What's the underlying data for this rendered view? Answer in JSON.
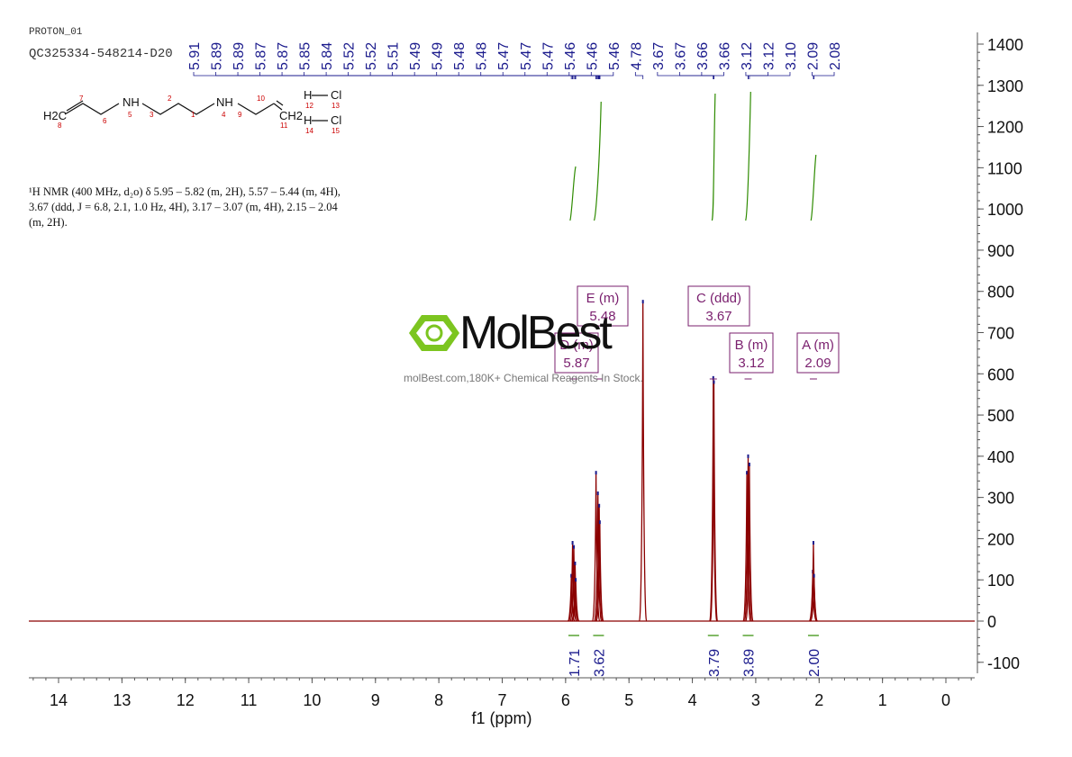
{
  "header": {
    "experiment": "PROTON_01",
    "sample": "QC325334-548214-D20"
  },
  "description": {
    "line1": "¹H NMR (400 MHz, d₂o) δ 5.95 – 5.82 (m, 2H), 5.57 – 5.44 (m, 4H),",
    "line2": "3.67 (ddd, J = 6.8, 2.1, 1.0 Hz, 4H), 3.17 – 3.07 (m, 4H), 2.15 – 2.04",
    "line3": "(m, 2H)."
  },
  "structure": {
    "atom_labels": [
      "H2C",
      "NH",
      "NH",
      "CH2",
      "H",
      "Cl",
      "H",
      "Cl"
    ],
    "numbers": [
      "7",
      "8",
      "6",
      "5",
      "3",
      "2",
      "1",
      "4",
      "9",
      "10",
      "11",
      "12",
      "13",
      "14",
      "15"
    ]
  },
  "watermark": {
    "brand": "MolBest",
    "tagline": "molBest.com,180K+ Chemical Reagents In Stock."
  },
  "colors": {
    "spectrum": "#8b0000",
    "peak_labels": "#1a1a8c",
    "integral_curves": "#2e8b00",
    "multiplet_boxes": "#7a1f6e"
  },
  "chart_data": {
    "type": "line",
    "xlabel": "f1 (ppm)",
    "ylabel": "",
    "xlim": [
      14.5,
      -0.5
    ],
    "ylim": [
      -140,
      1440
    ],
    "x_ticks": [
      14,
      13,
      12,
      11,
      10,
      9,
      8,
      7,
      6,
      5,
      4,
      3,
      2,
      1,
      0
    ],
    "y_ticks": [
      1400,
      1300,
      1200,
      1100,
      1000,
      900,
      800,
      700,
      600,
      500,
      400,
      300,
      200,
      100,
      0,
      -100
    ],
    "peak_labels": [
      "5.91",
      "5.89",
      "5.89",
      "5.87",
      "5.87",
      "5.85",
      "5.84",
      "5.52",
      "5.52",
      "5.51",
      "5.49",
      "5.49",
      "5.48",
      "5.48",
      "5.47",
      "5.47",
      "5.47",
      "5.46",
      "5.46",
      "5.46",
      "4.78",
      "3.67",
      "3.67",
      "3.66",
      "3.66",
      "3.12",
      "3.12",
      "3.10",
      "2.09",
      "2.08"
    ],
    "multiplets": [
      {
        "letter": "E",
        "type": "m",
        "shift": "5.48"
      },
      {
        "letter": "D",
        "type": "m",
        "shift": "5.87"
      },
      {
        "letter": "C",
        "type": "ddd",
        "shift": "3.67"
      },
      {
        "letter": "B",
        "type": "m",
        "shift": "3.12"
      },
      {
        "letter": "A",
        "type": "m",
        "shift": "2.09"
      }
    ],
    "integrals": [
      {
        "x": 5.87,
        "value": "1.71"
      },
      {
        "x": 5.48,
        "value": "3.62"
      },
      {
        "x": 3.67,
        "value": "3.79"
      },
      {
        "x": 3.12,
        "value": "3.89"
      },
      {
        "x": 2.09,
        "value": "2.00"
      }
    ],
    "peaks": [
      {
        "x": 5.91,
        "y": 110
      },
      {
        "x": 5.89,
        "y": 190
      },
      {
        "x": 5.87,
        "y": 180
      },
      {
        "x": 5.85,
        "y": 140
      },
      {
        "x": 5.84,
        "y": 100
      },
      {
        "x": 5.52,
        "y": 360
      },
      {
        "x": 5.49,
        "y": 310
      },
      {
        "x": 5.47,
        "y": 280
      },
      {
        "x": 5.46,
        "y": 240
      },
      {
        "x": 4.78,
        "y": 775
      },
      {
        "x": 3.67,
        "y": 590
      },
      {
        "x": 3.66,
        "y": 580
      },
      {
        "x": 3.14,
        "y": 360
      },
      {
        "x": 3.12,
        "y": 400
      },
      {
        "x": 3.1,
        "y": 380
      },
      {
        "x": 2.1,
        "y": 120
      },
      {
        "x": 2.09,
        "y": 190
      },
      {
        "x": 2.08,
        "y": 110
      }
    ]
  }
}
